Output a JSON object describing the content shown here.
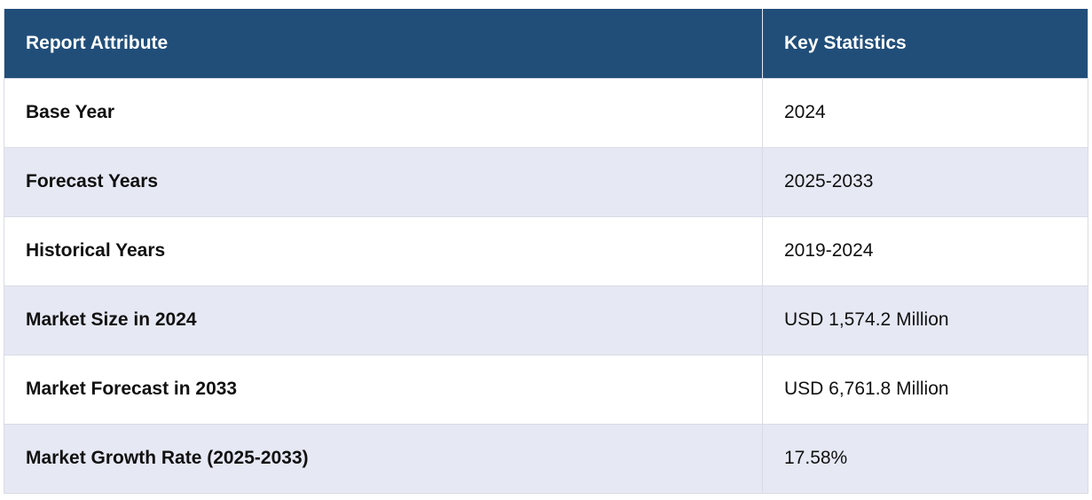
{
  "header": {
    "col1": "Report Attribute",
    "col2": "Key Statistics"
  },
  "rows": [
    {
      "attribute": "Base Year",
      "value": "2024"
    },
    {
      "attribute": "Forecast Years",
      "value": "2025-2033"
    },
    {
      "attribute": "Historical Years",
      "value": "2019-2024"
    },
    {
      "attribute": "Market Size in 2024",
      "value": "USD 1,574.2 Million"
    },
    {
      "attribute": "Market Forecast in 2033",
      "value": "USD 6,761.8 Million"
    },
    {
      "attribute": "Market Growth Rate (2025-2033)",
      "value": "17.58%"
    }
  ],
  "colors": {
    "header_bg": "#214e79",
    "header_text": "#ffffff",
    "stripe_bg": "#e6e9f4",
    "row_bg": "#ffffff"
  }
}
